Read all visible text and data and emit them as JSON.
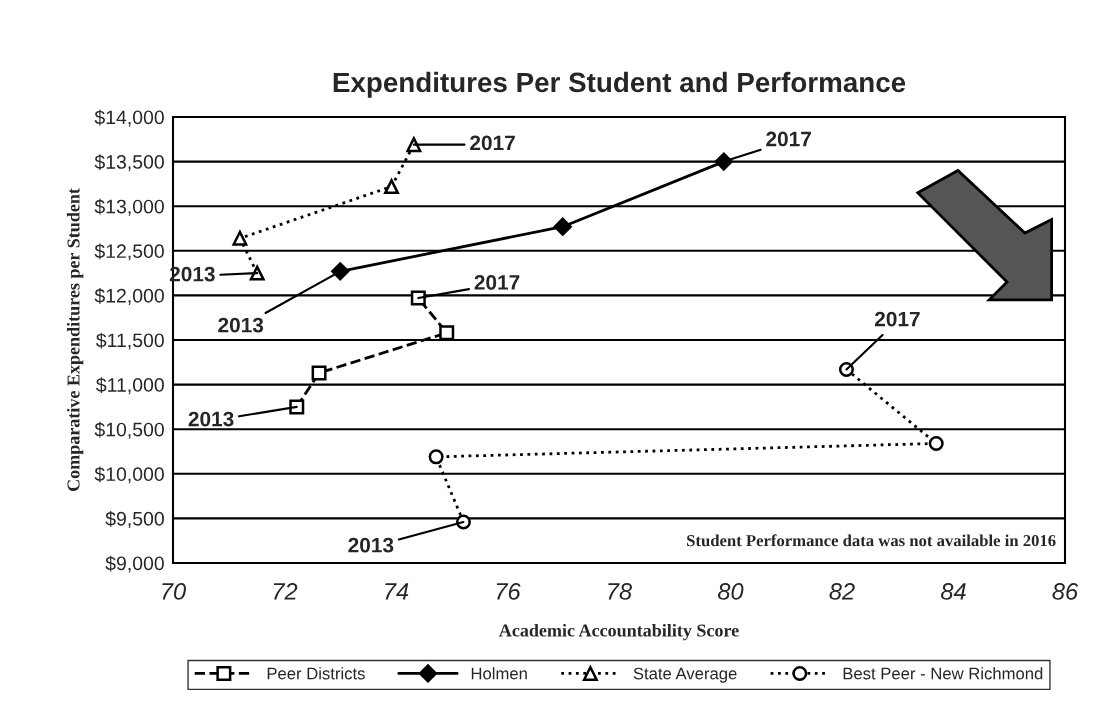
{
  "chart_data": {
    "type": "line",
    "title": "Expenditures Per Student and Performance",
    "xlabel": "Academic Accountability Score",
    "ylabel": "Comparative Expenditures per Student",
    "series": [
      {
        "name": "Peer Districts",
        "color": "#000000",
        "marker": "square",
        "line_style": "dashed",
        "x": [
          72.22,
          72.62,
          74.91,
          74.4
        ],
        "values": [
          10750,
          11130,
          11580,
          11970
        ]
      },
      {
        "name": "Holmen",
        "color": "#000000",
        "marker": "diamond",
        "line_style": "solid",
        "x": [
          73.0,
          76.99,
          79.88
        ],
        "values": [
          12270,
          12770,
          13500
        ]
      },
      {
        "name": "State Average",
        "color": "#000000",
        "marker": "triangle",
        "line_style": "dotted",
        "x": [
          71.51,
          71.2,
          73.92,
          74.32
        ],
        "values": [
          12250,
          12640,
          13220,
          13690
        ]
      },
      {
        "name": "Best Peer - New Richmond",
        "color": "#000000",
        "marker": "circle",
        "line_style": "dotted",
        "x": [
          75.21,
          74.72,
          83.69,
          82.08
        ],
        "values": [
          9460,
          10190,
          10340,
          11170
        ]
      }
    ],
    "xlim": [
      70,
      86
    ],
    "xticks": [
      70,
      72,
      74,
      76,
      78,
      80,
      82,
      84,
      86
    ],
    "ylim": [
      9000,
      14000
    ],
    "yticks": [
      {
        "value": 9000,
        "label": "$9,000"
      },
      {
        "value": 9500,
        "label": "$9,500"
      },
      {
        "value": 10000,
        "label": "$10,000"
      },
      {
        "value": 10500,
        "label": "$10,500"
      },
      {
        "value": 11000,
        "label": "$11,000"
      },
      {
        "value": 11500,
        "label": "$11,500"
      },
      {
        "value": 12000,
        "label": "$12,000"
      },
      {
        "value": 12500,
        "label": "$12,500"
      },
      {
        "value": 13000,
        "label": "$13,000"
      },
      {
        "value": 13500,
        "label": "$13,500"
      },
      {
        "value": 14000,
        "label": "$14,000"
      }
    ],
    "grid": "y",
    "legend": "bottom",
    "annotations": [
      {
        "text": "2017",
        "x": 74.32,
        "y": 13690
      },
      {
        "text": "2013",
        "x": 71.51,
        "y": 12250
      },
      {
        "text": "2017",
        "x": 79.88,
        "y": 13500
      },
      {
        "text": "2013",
        "x": 73.0,
        "y": 12270
      },
      {
        "text": "2017",
        "x": 74.4,
        "y": 11970
      },
      {
        "text": "2013",
        "x": 72.22,
        "y": 10750
      },
      {
        "text": "2017",
        "x": 82.08,
        "y": 11170
      },
      {
        "text": "2013",
        "x": 75.21,
        "y": 9460
      },
      "Student Performance data was not available in 2016"
    ]
  }
}
